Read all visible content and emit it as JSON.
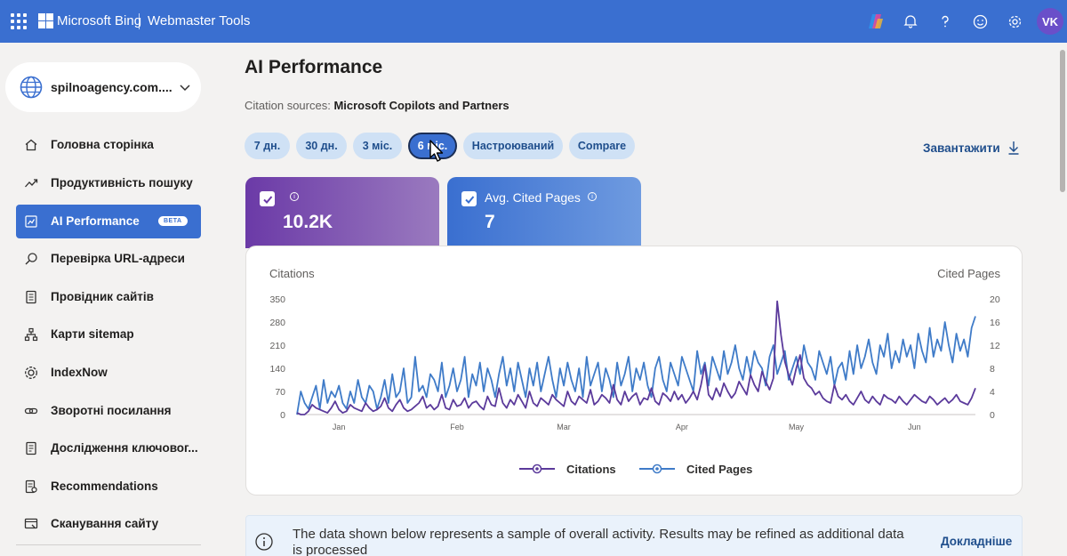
{
  "topbar": {
    "brand": "Microsoft Bing",
    "product": "Webmaster Tools",
    "avatar_initials": "VK",
    "icons": [
      "waffle-icon",
      "copilot-icon",
      "bell-icon",
      "help-icon",
      "feedback-smile-icon",
      "gear-icon"
    ]
  },
  "sidebar": {
    "site": "spilnoagency.com....",
    "items": [
      {
        "label": "Головна сторінка",
        "icon": "home-icon"
      },
      {
        "label": "Продуктивність пошуку",
        "icon": "trend-icon"
      },
      {
        "label": "AI Performance",
        "icon": "ai-chart-icon",
        "badge": "BETA",
        "active": true
      },
      {
        "label": "Перевірка URL-адреси",
        "icon": "search-icon"
      },
      {
        "label": "Провідник сайтів",
        "icon": "explorer-icon"
      },
      {
        "label": "Карти sitemap",
        "icon": "sitemap-icon"
      },
      {
        "label": "IndexNow",
        "icon": "indexnow-icon"
      },
      {
        "label": "Зворотні посилання",
        "icon": "link-icon"
      },
      {
        "label": "Дослідження ключовог...",
        "icon": "keyword-icon"
      },
      {
        "label": "Recommendations",
        "icon": "recommendations-icon"
      },
      {
        "label": "Сканування сайту",
        "icon": "scan-icon"
      }
    ]
  },
  "main": {
    "title": "AI Performance",
    "citation_label": "Citation sources:",
    "citation_value": "Microsoft Copilots and Partners",
    "ranges": [
      "7 дн.",
      "30 дн.",
      "3 міс.",
      "6 міс.",
      "Настроюваний",
      "Compare"
    ],
    "active_range": "6 міс.",
    "download_label": "Завантажити",
    "metrics": [
      {
        "title": "",
        "value": "10.2K",
        "checked": true
      },
      {
        "title": "Avg. Cited Pages",
        "value": "7",
        "checked": true
      }
    ],
    "info_text": "The data shown below represents a sample of overall activity. Results may be refined as additional data is processed",
    "info_link": "Докладніше"
  },
  "colors": {
    "accent": "#3a6fd0",
    "citations": "#5b3a9b",
    "cited_pages": "#3f7bc8"
  },
  "chart_data": {
    "type": "line",
    "ylabel_left": "Citations",
    "ylabel_right": "Cited Pages",
    "y_left_ticks": [
      "350",
      "280",
      "210",
      "140",
      "70",
      "0"
    ],
    "y_right_ticks": [
      "20",
      "16",
      "12",
      "8",
      "4",
      "0"
    ],
    "ylim_left": [
      0,
      350
    ],
    "ylim_right": [
      0,
      20
    ],
    "x_ticks": [
      "Jan",
      "Feb",
      "Mar",
      "Apr",
      "May",
      "Jun"
    ],
    "x_tick_days": [
      12,
      43,
      71,
      102,
      132,
      163
    ],
    "x_range_days": [
      1,
      179
    ],
    "legend_position": "bottom",
    "series": [
      {
        "name": "Citations",
        "axis": "left",
        "values": [
          5,
          0,
          0,
          10,
          30,
          20,
          15,
          10,
          5,
          20,
          40,
          15,
          5,
          10,
          30,
          20,
          15,
          10,
          35,
          20,
          10,
          15,
          25,
          50,
          20,
          10,
          30,
          45,
          20,
          10,
          15,
          25,
          35,
          55,
          20,
          30,
          15,
          25,
          60,
          20,
          15,
          45,
          25,
          30,
          50,
          20,
          35,
          40,
          25,
          15,
          55,
          30,
          25,
          80,
          35,
          20,
          45,
          30,
          60,
          40,
          20,
          70,
          35,
          25,
          50,
          40,
          30,
          60,
          45,
          35,
          25,
          70,
          40,
          30,
          55,
          45,
          35,
          75,
          30,
          40,
          60,
          50,
          35,
          90,
          45,
          30,
          70,
          40,
          55,
          65,
          30,
          50,
          45,
          80,
          40,
          30,
          65,
          55,
          40,
          70,
          45,
          60,
          35,
          50,
          70,
          45,
          90,
          150,
          60,
          45,
          80,
          55,
          95,
          70,
          50,
          65,
          100,
          80,
          60,
          120,
          90,
          70,
          130,
          100,
          75,
          110,
          343,
          240,
          160,
          120,
          90,
          140,
          180,
          110,
          90,
          80,
          60,
          70,
          50,
          40,
          35,
          90,
          55,
          45,
          60,
          40,
          30,
          50,
          70,
          45,
          35,
          55,
          40,
          30,
          60,
          50,
          45,
          35,
          55,
          40,
          30,
          45,
          60,
          50,
          40,
          35,
          55,
          45,
          30,
          40,
          50,
          35,
          45,
          60,
          40,
          35,
          30,
          50,
          80
        ]
      },
      {
        "name": "Cited Pages",
        "axis": "right",
        "values": [
          0,
          4,
          2,
          1,
          3,
          5,
          1,
          6,
          2,
          4,
          3,
          5,
          2,
          1,
          4,
          2,
          6,
          3,
          2,
          5,
          4,
          1,
          3,
          6,
          2,
          7,
          3,
          4,
          8,
          2,
          3,
          10,
          4,
          5,
          3,
          7,
          6,
          4,
          9,
          3,
          5,
          8,
          4,
          6,
          10,
          3,
          7,
          5,
          9,
          4,
          8,
          6,
          3,
          7,
          10,
          5,
          8,
          4,
          9,
          6,
          3,
          8,
          5,
          9,
          4,
          7,
          10,
          6,
          3,
          8,
          5,
          9,
          6,
          4,
          8,
          3,
          10,
          5,
          7,
          9,
          4,
          8,
          6,
          3,
          9,
          5,
          7,
          10,
          4,
          8,
          6,
          9,
          5,
          3,
          8,
          10,
          6,
          4,
          9,
          7,
          5,
          10,
          8,
          6,
          4,
          11,
          7,
          9,
          5,
          10,
          8,
          6,
          11,
          7,
          9,
          12,
          8,
          6,
          10,
          7,
          11,
          9,
          8,
          5,
          10,
          12,
          7,
          9,
          11,
          6,
          8,
          10,
          7,
          12,
          9,
          8,
          6,
          11,
          9,
          7,
          10,
          5,
          8,
          9,
          6,
          11,
          7,
          12,
          8,
          10,
          13,
          9,
          7,
          12,
          10,
          14,
          8,
          11,
          9,
          13,
          10,
          12,
          8,
          14,
          11,
          9,
          15,
          10,
          13,
          11,
          16,
          12,
          9,
          14,
          11,
          13,
          10,
          15,
          17
        ]
      }
    ]
  }
}
